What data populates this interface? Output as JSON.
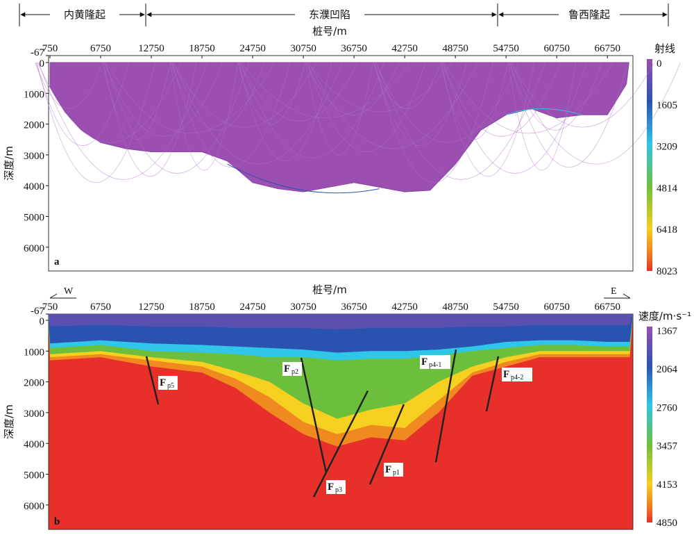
{
  "header": {
    "regions": [
      "内黄隆起",
      "东濮凹陷",
      "鲁西隆起"
    ]
  },
  "chart_data": [
    {
      "id": "a",
      "type": "heatmap",
      "panel_label": "a",
      "title": "",
      "xlabel": "桩号/m",
      "ylabel": "深度/m",
      "x_ticks": [
        "750",
        "6750",
        "12750",
        "18750",
        "24750",
        "30750",
        "36750",
        "42750",
        "48750",
        "54750",
        "60750",
        "66750"
      ],
      "y_ticks": [
        "-67",
        "0",
        "1000",
        "2000",
        "3000",
        "4000",
        "5000",
        "6000"
      ],
      "ylim": [
        -67,
        6900
      ],
      "xlim": [
        750,
        69400
      ],
      "colorbar": {
        "label": "射线",
        "ticks": [
          "0",
          "1605",
          "3209",
          "4814",
          "6418",
          "8023"
        ],
        "colors": [
          "#9b4fb0",
          "#2a52b0",
          "#2fc6e8",
          "#6cbf3c",
          "#f5d020",
          "#e8302a"
        ]
      },
      "ray_bottom_profile": {
        "station": [
          750,
          2500,
          4500,
          6750,
          9750,
          12750,
          15750,
          18750,
          21750,
          24750,
          27750,
          30750,
          33750,
          36750,
          39750,
          42750,
          45750,
          48750,
          51750,
          54750,
          57750,
          60750,
          63750,
          66750,
          69000
        ],
        "depth": [
          800,
          1600,
          2200,
          2600,
          2800,
          2900,
          2900,
          2900,
          3200,
          3900,
          4100,
          4200,
          4050,
          3900,
          4050,
          4200,
          4150,
          3300,
          2200,
          1700,
          1500,
          1800,
          1700,
          1700,
          700
        ]
      }
    },
    {
      "id": "b",
      "type": "heatmap",
      "panel_label": "b",
      "xlabel": "桩号/m",
      "ylabel": "深度/m",
      "direction_west": "W",
      "direction_east": "E",
      "x_ticks": [
        "750",
        "6750",
        "12750",
        "18750",
        "24750",
        "30750",
        "36750",
        "42750",
        "48750",
        "54750",
        "60750",
        "66750"
      ],
      "y_ticks": [
        "-67",
        "0",
        "1000",
        "2000",
        "3000",
        "4000",
        "5000",
        "6000"
      ],
      "ylim": [
        -67,
        6900
      ],
      "xlim": [
        750,
        69400
      ],
      "colorbar": {
        "label": "速度/m·s⁻¹",
        "ticks": [
          "1367",
          "2064",
          "2760",
          "3457",
          "4153",
          "4850"
        ],
        "colors": [
          "#9b4fb0",
          "#2a52b0",
          "#2fc6e8",
          "#6cbf3c",
          "#f5d020",
          "#e8302a"
        ]
      },
      "faults": [
        {
          "label": "F",
          "sub": "p5",
          "from": [
            12170,
            1170
          ],
          "to": [
            13570,
            2730
          ]
        },
        {
          "label": "F",
          "sub": "p2",
          "from": [
            30500,
            1220
          ],
          "to": [
            33450,
            4950
          ]
        },
        {
          "label": "F",
          "sub": "p3",
          "from": [
            38380,
            2290
          ],
          "to": [
            31970,
            5740
          ]
        },
        {
          "label": "F",
          "sub": "p1",
          "from": [
            42650,
            2730
          ],
          "to": [
            38630,
            5330
          ]
        },
        {
          "label": "F",
          "sub": "p4-1",
          "from": [
            48820,
            950
          ],
          "to": [
            46440,
            4610
          ]
        },
        {
          "label": "F",
          "sub": "p4-2",
          "from": [
            53830,
            1170
          ],
          "to": [
            52430,
            2960
          ]
        }
      ]
    }
  ]
}
